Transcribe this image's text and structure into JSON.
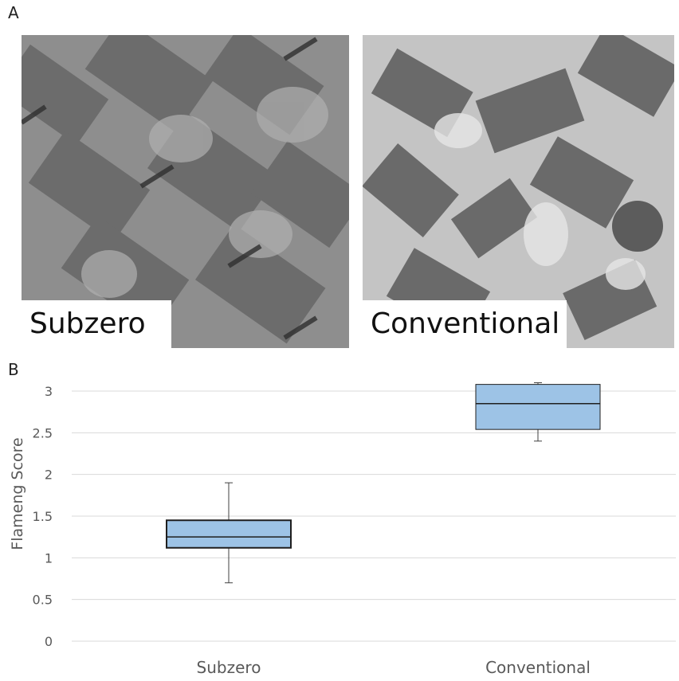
{
  "panels": {
    "a_label": "A",
    "b_label": "B",
    "micrographs": [
      {
        "label": "Subzero"
      },
      {
        "label": "Conventional"
      }
    ]
  },
  "chart_data": {
    "type": "box",
    "categories": [
      "Subzero",
      "Conventional"
    ],
    "ylabel": "Flameng Score",
    "ylim": [
      0,
      3
    ],
    "yticks": [
      0,
      0.5,
      1,
      1.5,
      2,
      2.5,
      3
    ],
    "grid": true,
    "series": [
      {
        "min": 0.7,
        "q1": 1.12,
        "median": 1.25,
        "q3": 1.45,
        "max": 1.9
      },
      {
        "min": 2.4,
        "q1": 2.54,
        "median": 2.85,
        "q3": 3.08,
        "max": 3.1
      }
    ],
    "colors": {
      "box_fill": "#9dc3e6",
      "box_stroke": "#1f1f1f",
      "grid": "#d9d9d9",
      "text": "#595959"
    }
  }
}
